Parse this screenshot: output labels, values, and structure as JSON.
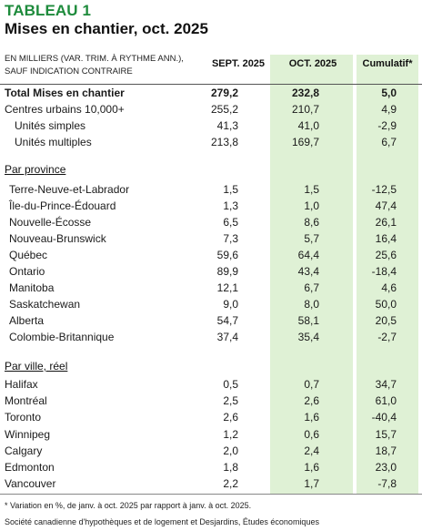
{
  "title": "TABLEAU 1",
  "subtitle": "Mises en chantier, oct. 2025",
  "unit_note": "EN MILLIERS (VAR. TRIM. À RYTHME ANN.),\nSAUF INDICATION CONTRAIRE",
  "columns": [
    "SEPT. 2025",
    "OCT. 2025",
    "Cumulatif*"
  ],
  "summary_rows": [
    {
      "label": "Total Mises en chantier",
      "v1": "279,2",
      "v2": "232,8",
      "v3": "5,0",
      "bold": true
    },
    {
      "label": "Centres urbains 10,000+",
      "v1": "255,2",
      "v2": "210,7",
      "v3": "4,9"
    },
    {
      "label": "Unités simples",
      "v1": "41,3",
      "v2": "41,0",
      "v3": "-2,9",
      "indent": true
    },
    {
      "label": "Unités multiples",
      "v1": "213,8",
      "v2": "169,7",
      "v3": "6,7",
      "indent": true
    }
  ],
  "province_header": "Par province",
  "province_rows": [
    {
      "label": "Terre-Neuve-et-Labrador",
      "v1": "1,5",
      "v2": "1,5",
      "v3": "-12,5"
    },
    {
      "label": "Île-du-Prince-Édouard",
      "v1": "1,3",
      "v2": "1,0",
      "v3": "47,4"
    },
    {
      "label": "Nouvelle-Écosse",
      "v1": "6,5",
      "v2": "8,6",
      "v3": "26,1"
    },
    {
      "label": "Nouveau-Brunswick",
      "v1": "7,3",
      "v2": "5,7",
      "v3": "16,4"
    },
    {
      "label": "Québec",
      "v1": "59,6",
      "v2": "64,4",
      "v3": "25,6"
    },
    {
      "label": "Ontario",
      "v1": "89,9",
      "v2": "43,4",
      "v3": "-18,4"
    },
    {
      "label": "Manitoba",
      "v1": "12,1",
      "v2": "6,7",
      "v3": "4,6"
    },
    {
      "label": "Saskatchewan",
      "v1": "9,0",
      "v2": "8,0",
      "v3": "50,0"
    },
    {
      "label": "Alberta",
      "v1": "54,7",
      "v2": "58,1",
      "v3": "20,5"
    },
    {
      "label": "Colombie-Britannique",
      "v1": "37,4",
      "v2": "35,4",
      "v3": "-2,7"
    }
  ],
  "city_header": "Par ville, réel",
  "city_rows": [
    {
      "label": "Halifax",
      "v1": "0,5",
      "v2": "0,7",
      "v3": "34,7"
    },
    {
      "label": "Montréal",
      "v1": "2,5",
      "v2": "2,6",
      "v3": "61,0"
    },
    {
      "label": "Toronto",
      "v1": "2,6",
      "v2": "1,6",
      "v3": "-40,4"
    },
    {
      "label": "Winnipeg",
      "v1": "1,2",
      "v2": "0,6",
      "v3": "15,7"
    },
    {
      "label": "Calgary",
      "v1": "2,0",
      "v2": "2,4",
      "v3": "18,7"
    },
    {
      "label": "Edmonton",
      "v1": "1,8",
      "v2": "1,6",
      "v3": "23,0"
    },
    {
      "label": "Vancouver",
      "v1": "2,2",
      "v2": "1,7",
      "v3": "-7,8"
    }
  ],
  "footnote": "* Variation en %, de janv. à oct. 2025 par rapport à janv. à oct. 2025.",
  "source": "Société canadienne d'hypothèques et de logement et Desjardins, Études économiques",
  "colors": {
    "accent_green": "#1e8b3c",
    "column_highlight": "#dff1d5"
  }
}
